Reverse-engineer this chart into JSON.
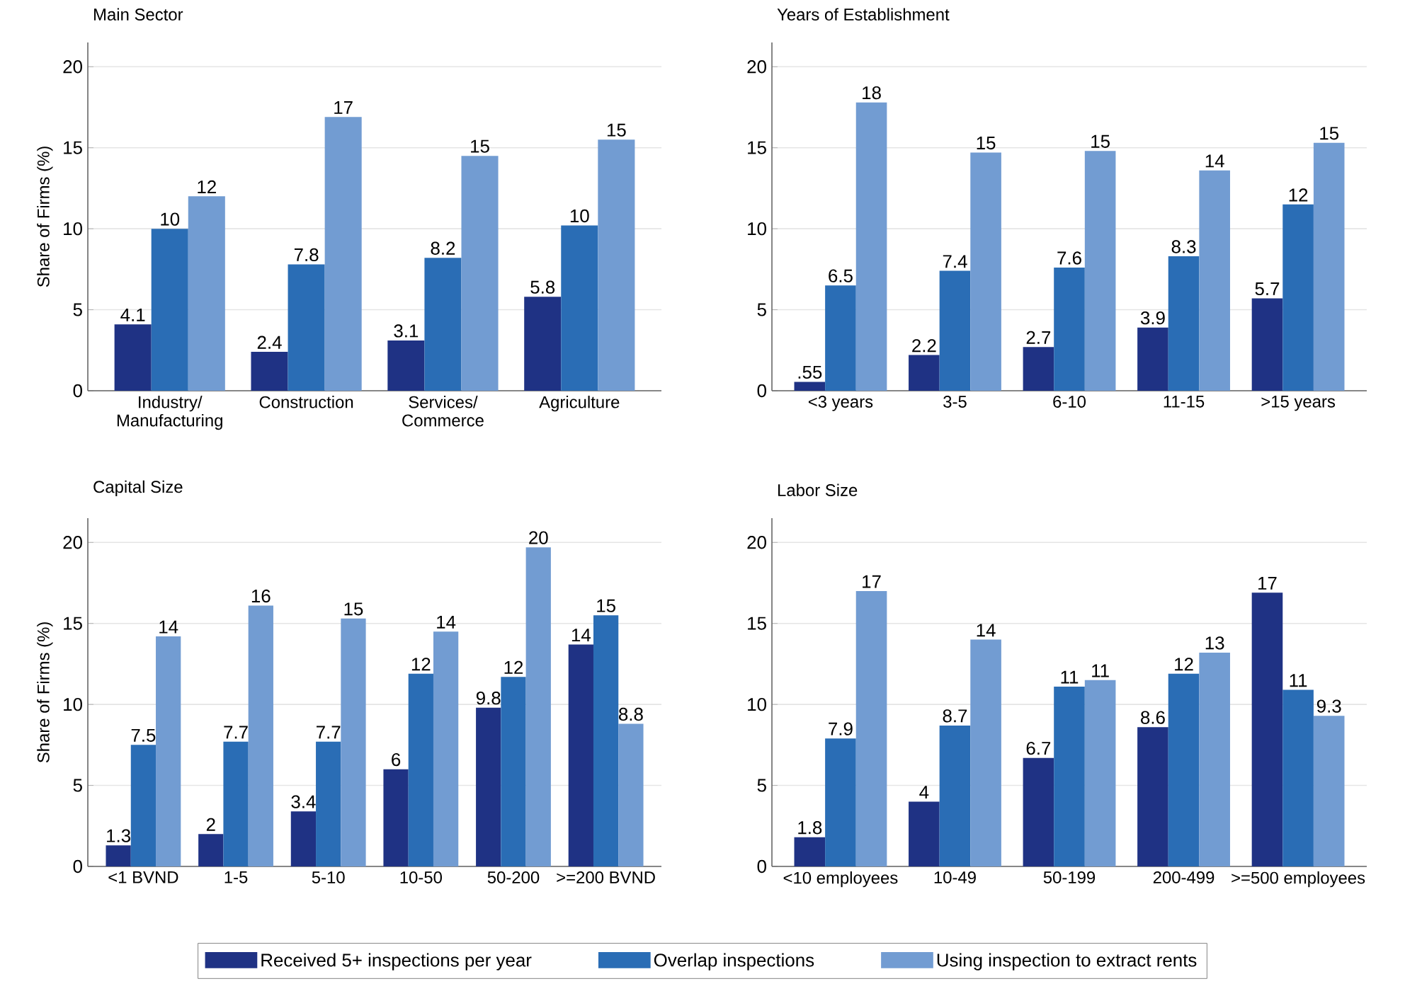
{
  "chart_data": [
    {
      "type": "bar",
      "title": "Main Sector",
      "ylabel": "Share of Firms (%)",
      "categories": [
        "Industry/ Manufacturing",
        "Construction",
        "Services/ Commerce",
        "Agriculture"
      ],
      "ylim": [
        0,
        21.5
      ],
      "yticks": [
        0,
        5,
        10,
        15,
        20
      ],
      "grid": "y",
      "series": [
        {
          "color": "#1f3284",
          "values": [
            4.1,
            2.4,
            3.1,
            5.8
          ],
          "value_labels": [
            "4.1",
            "2.4",
            "3.1",
            "5.8"
          ]
        },
        {
          "color": "#2a6db5",
          "values": [
            10,
            7.8,
            8.2,
            10.2
          ],
          "value_labels": [
            "10",
            "7.8",
            "8.2",
            "10"
          ]
        },
        {
          "color": "#729cd2",
          "values": [
            12,
            16.9,
            14.5,
            15.5
          ],
          "value_labels": [
            "12",
            "17",
            "15",
            "15"
          ]
        }
      ]
    },
    {
      "type": "bar",
      "title": "Years of Establishment",
      "categories": [
        "<3 years",
        "3-5",
        "6-10",
        "11-15",
        ">15 years"
      ],
      "ylim": [
        0,
        21.5
      ],
      "yticks": [
        0,
        5,
        10,
        15,
        20
      ],
      "grid": "y",
      "series": [
        {
          "color": "#1f3284",
          "values": [
            0.55,
            2.2,
            2.7,
            3.9,
            5.7
          ],
          "value_labels": [
            ".55",
            "2.2",
            "2.7",
            "3.9",
            "5.7"
          ]
        },
        {
          "color": "#2a6db5",
          "values": [
            6.5,
            7.4,
            7.6,
            8.3,
            11.5
          ],
          "value_labels": [
            "6.5",
            "7.4",
            "7.6",
            "8.3",
            "12"
          ]
        },
        {
          "color": "#729cd2",
          "values": [
            17.8,
            14.7,
            14.8,
            13.6,
            15.3
          ],
          "value_labels": [
            "18",
            "15",
            "15",
            "14",
            "15"
          ]
        }
      ]
    },
    {
      "type": "bar",
      "title": "Capital Size",
      "ylabel": "Share of Firms (%)",
      "categories": [
        "<1 BVND",
        "1-5",
        "5-10",
        "10-50",
        "50-200",
        ">=200 BVND"
      ],
      "ylim": [
        0,
        21.5
      ],
      "yticks": [
        0,
        5,
        10,
        15,
        20
      ],
      "grid": "y",
      "series": [
        {
          "color": "#1f3284",
          "values": [
            1.3,
            2,
            3.4,
            6,
            9.8,
            13.7
          ],
          "value_labels": [
            "1.3",
            "2",
            "3.4",
            "6",
            "9.8",
            "14"
          ]
        },
        {
          "color": "#2a6db5",
          "values": [
            7.5,
            7.7,
            7.7,
            11.9,
            11.7,
            15.5
          ],
          "value_labels": [
            "7.5",
            "7.7",
            "7.7",
            "12",
            "12",
            "15"
          ]
        },
        {
          "color": "#729cd2",
          "values": [
            14.2,
            16.1,
            15.3,
            14.5,
            19.7,
            8.8
          ],
          "value_labels": [
            "14",
            "16",
            "15",
            "14",
            "20",
            "8.8"
          ]
        }
      ]
    },
    {
      "type": "bar",
      "title": "Labor Size",
      "categories": [
        "<10 employees",
        "10-49",
        "50-199",
        "200-499",
        ">=500 employees"
      ],
      "ylim": [
        0,
        21.5
      ],
      "yticks": [
        0,
        5,
        10,
        15,
        20
      ],
      "grid": "y",
      "legend": "bottom",
      "series": [
        {
          "name": "Received 5+ inspections per year",
          "color": "#1f3284",
          "values": [
            1.8,
            4,
            6.7,
            8.6,
            16.9
          ],
          "value_labels": [
            "1.8",
            "4",
            "6.7",
            "8.6",
            "17"
          ]
        },
        {
          "name": "Overlap inspections",
          "color": "#2a6db5",
          "values": [
            7.9,
            8.7,
            11.1,
            11.9,
            10.9
          ],
          "value_labels": [
            "7.9",
            "8.7",
            "11",
            "12",
            "11"
          ]
        },
        {
          "name": "Using inspection to extract rents",
          "color": "#729cd2",
          "values": [
            17,
            14,
            11.5,
            13.2,
            9.3
          ],
          "value_labels": [
            "17",
            "14",
            "11",
            "13",
            "9.3"
          ]
        }
      ]
    }
  ]
}
